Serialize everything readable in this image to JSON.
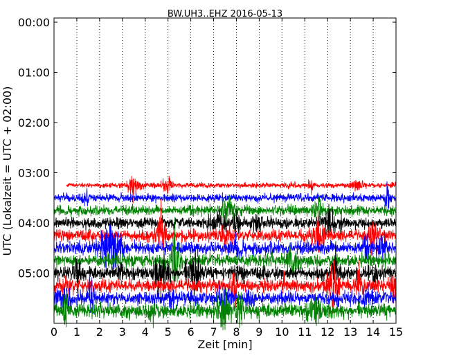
{
  "chart_data": {
    "type": "line",
    "title": "BW.UH3..EHZ 2016-05-13",
    "xlabel": "Zeit  [min]",
    "ylabel": "UTC (Lokalzeit = UTC + 02:00)",
    "xlim": [
      0,
      15
    ],
    "ylim": [
      360,
      -5
    ],
    "x_ticks": [
      0,
      1,
      2,
      3,
      4,
      5,
      6,
      7,
      8,
      9,
      10,
      11,
      12,
      13,
      14,
      15
    ],
    "x_tick_labels": [
      "0",
      "1",
      "2",
      "3",
      "4",
      "5",
      "6",
      "7",
      "8",
      "9",
      "10",
      "11",
      "12",
      "13",
      "14",
      "15"
    ],
    "y_ticks": [
      0,
      60,
      120,
      180,
      240,
      300
    ],
    "y_tick_labels": [
      "00:00",
      "01:00",
      "02:00",
      "03:00",
      "04:00",
      "05:00"
    ],
    "grid": "vertical-dotted",
    "series": [
      {
        "start_time": "03:15",
        "start_min": 0.55,
        "end_min": 15,
        "color": "#ff0000",
        "amplitude": 3.0
      },
      {
        "start_time": "03:30",
        "start_min": 0,
        "end_min": 15,
        "color": "#0000ff",
        "amplitude": 5.0
      },
      {
        "start_time": "03:45",
        "start_min": 0,
        "end_min": 15,
        "color": "#008000",
        "amplitude": 6.0
      },
      {
        "start_time": "04:00",
        "start_min": 0,
        "end_min": 15,
        "color": "#000000",
        "amplitude": 7.0
      },
      {
        "start_time": "04:15",
        "start_min": 0,
        "end_min": 15,
        "color": "#ff0000",
        "amplitude": 7.0
      },
      {
        "start_time": "04:30",
        "start_min": 0,
        "end_min": 15,
        "color": "#0000ff",
        "amplitude": 8.0
      },
      {
        "start_time": "04:45",
        "start_min": 0,
        "end_min": 15,
        "color": "#008000",
        "amplitude": 8.0
      },
      {
        "start_time": "05:00",
        "start_min": 0,
        "end_min": 15,
        "color": "#000000",
        "amplitude": 8.0
      },
      {
        "start_time": "05:15",
        "start_min": 0,
        "end_min": 15,
        "color": "#ff0000",
        "amplitude": 8.0
      },
      {
        "start_time": "05:30",
        "start_min": 0,
        "end_min": 15,
        "color": "#0000ff",
        "amplitude": 8.0
      },
      {
        "start_time": "05:45",
        "start_min": 0,
        "end_min": 15,
        "color": "#008000",
        "amplitude": 9.0
      }
    ]
  }
}
